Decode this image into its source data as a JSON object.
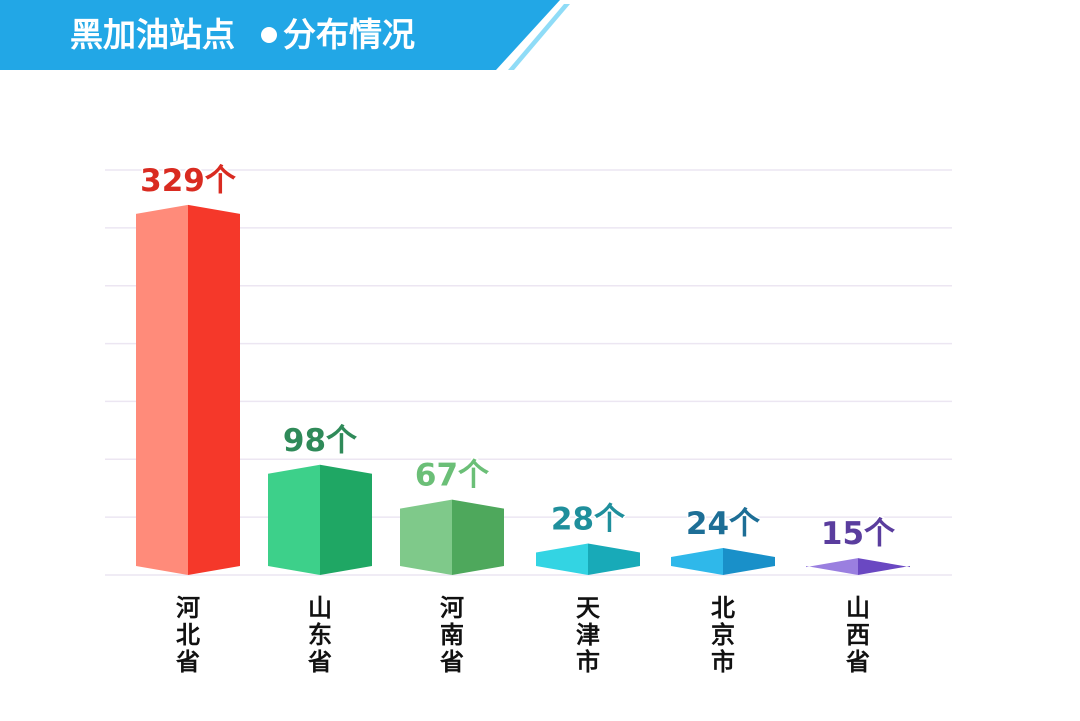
{
  "header": {
    "title_part1": "黑加油站点",
    "title_part2": "分布情况"
  },
  "colors": {
    "banner": "#22a7e6",
    "banner_light": "#8fdcf7",
    "text": "#111111",
    "grid": "#ece6f2"
  },
  "chart_data": {
    "type": "bar",
    "title": "黑加油站点●分布情况",
    "unit_suffix": "个",
    "categories": [
      "河北省",
      "山东省",
      "河南省",
      "天津市",
      "北京市",
      "山西省"
    ],
    "values": [
      329,
      98,
      67,
      28,
      24,
      15
    ],
    "value_labels": [
      "329个",
      "98个",
      "67个",
      "28个",
      "24个",
      "15个"
    ],
    "bar_colors": [
      {
        "light": "#ff8b7a",
        "dark": "#f5382a",
        "top": "#ff5a45",
        "label": "#d92b21"
      },
      {
        "light": "#3dd08a",
        "dark": "#1fa764",
        "top": "#2fbe78",
        "label": "#2f8a59"
      },
      {
        "light": "#7fc98a",
        "dark": "#4ea85c",
        "top": "#66b873",
        "label": "#6bbf77"
      },
      {
        "light": "#33d4e3",
        "dark": "#18aab8",
        "top": "#22c2d1",
        "label": "#1f8f9c"
      },
      {
        "light": "#2fb8ea",
        "dark": "#1990c9",
        "top": "#24a6dd",
        "label": "#1d6e96"
      },
      {
        "light": "#9a7fe0",
        "dark": "#6a48c2",
        "top": "#8363d3",
        "label": "#5a3d9e"
      }
    ],
    "ylim": [
      0,
      360
    ],
    "grid": true,
    "legend": "none"
  }
}
